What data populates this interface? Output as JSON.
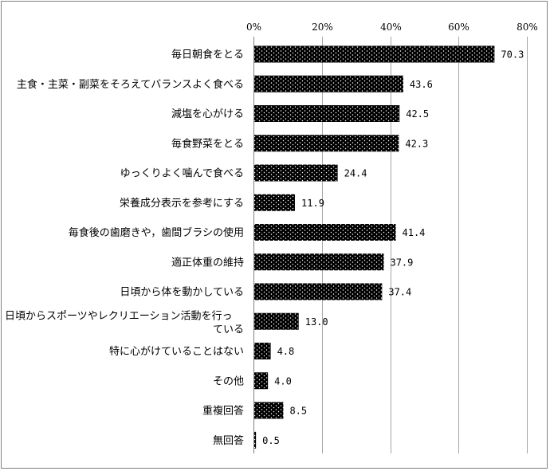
{
  "chart_data": {
    "type": "bar",
    "orientation": "horizontal",
    "categories": [
      "毎日朝食をとる",
      "主食・主菜・副菜をそろえてバランスよく食べる",
      "減塩を心がける",
      "毎食野菜をとる",
      "ゆっくりよく噛んで食べる",
      "栄養成分表示を参考にする",
      "毎食後の歯磨きや，歯間ブラシの使用",
      "適正体重の維持",
      "日頃から体を動かしている",
      "日頃からスポーツやレクリエーション活動を行っている",
      "特に心がけていることはない",
      "その他",
      "重複回答",
      "無回答"
    ],
    "category_lines": [
      [
        "毎日朝食をとる"
      ],
      [
        "主食・主菜・副菜をそろえてバランスよく食べる"
      ],
      [
        "減塩を心がける"
      ],
      [
        "毎食野菜をとる"
      ],
      [
        "ゆっくりよく噛んで食べる"
      ],
      [
        "栄養成分表示を参考にする"
      ],
      [
        "毎食後の歯磨きや，歯間ブラシの使用"
      ],
      [
        "適正体重の維持"
      ],
      [
        "日頃から体を動かしている"
      ],
      [
        "日頃からスポーツやレクリエーション活動を行っ",
        "ている"
      ],
      [
        "特に心がけていることはない"
      ],
      [
        "その他"
      ],
      [
        "重複回答"
      ],
      [
        "無回答"
      ]
    ],
    "values": [
      70.3,
      43.6,
      42.5,
      42.3,
      24.4,
      11.9,
      41.4,
      37.9,
      37.4,
      13.0,
      4.8,
      4.0,
      8.5,
      0.5
    ],
    "value_labels": [
      "70.3",
      "43.6",
      "42.5",
      "42.3",
      "24.4",
      "11.9",
      "41.4",
      "37.9",
      "37.4",
      "13.0",
      "4.8",
      "4.0",
      "8.5",
      "0.5"
    ],
    "xlim": [
      0,
      80
    ],
    "x_ticks": [
      0,
      20,
      40,
      60,
      80
    ],
    "x_tick_labels": [
      "0%",
      "20%",
      "40%",
      "60%",
      "80%"
    ],
    "x_axis_position": "top",
    "grid": true,
    "legend": "none",
    "bar_color": "#000000",
    "bar_pattern": "white dots",
    "grid_color": "#a6a6a6",
    "title": "",
    "xlabel": "",
    "ylabel": ""
  }
}
